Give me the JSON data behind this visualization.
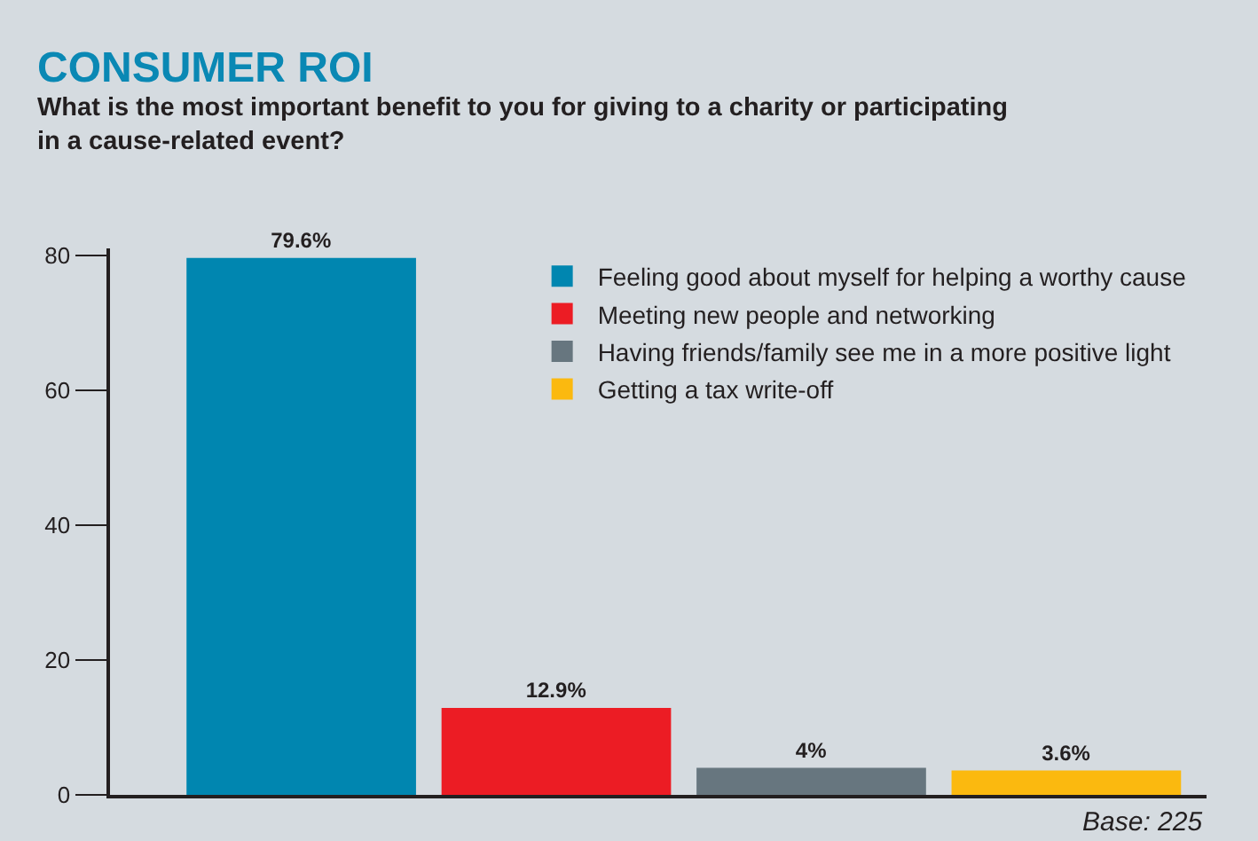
{
  "chart_data": {
    "type": "bar",
    "title": "CONSUMER ROI",
    "subtitle": "What is the most important benefit to you for giving to a charity or participating in a cause-related event?",
    "categories": [
      null,
      null,
      null,
      null
    ],
    "series": [
      {
        "name": "Feeling good about myself for helping a worthy cause",
        "color": "#0086b0",
        "values": [
          79.6,
          null,
          null,
          null
        ],
        "value_labels": [
          "79.6%",
          null,
          null,
          null
        ]
      },
      {
        "name": "Meeting new people and networking",
        "color": "#ec1c24",
        "values": [
          null,
          12.9,
          null,
          null
        ],
        "value_labels": [
          null,
          "12.9%",
          null,
          null
        ]
      },
      {
        "name": "Having friends/family see me in a more positive light",
        "color": "#67767f",
        "values": [
          null,
          null,
          4,
          null
        ],
        "value_labels": [
          null,
          null,
          "4%",
          null
        ]
      },
      {
        "name": "Getting a tax write-off",
        "color": "#fbb90f",
        "values": [
          null,
          null,
          null,
          3.6
        ],
        "value_labels": [
          null,
          null,
          null,
          "3.6%"
        ]
      }
    ],
    "ylim": [
      0,
      81
    ],
    "yticks": [
      0,
      20,
      40,
      60,
      80
    ],
    "grid": false,
    "legend": "top right",
    "tick_labels": "y",
    "annotations": [
      "Base: 225"
    ]
  }
}
